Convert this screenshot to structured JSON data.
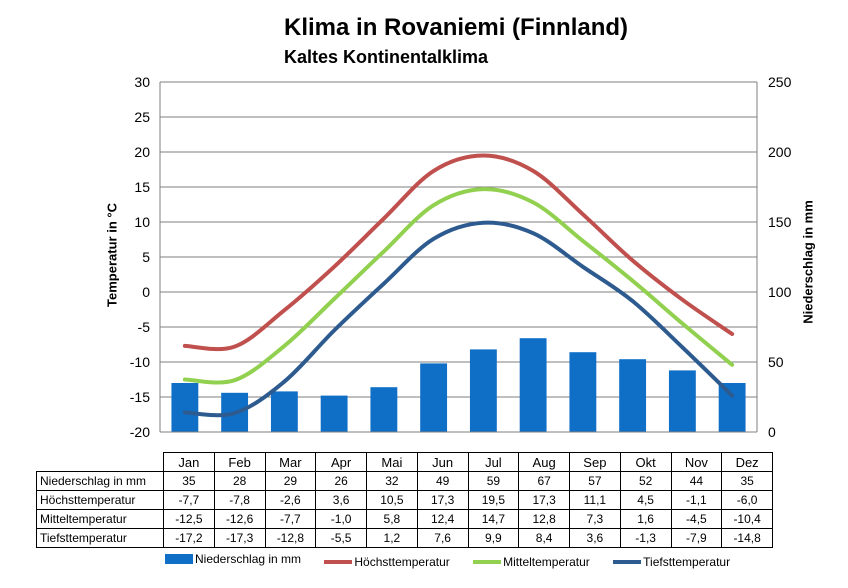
{
  "chart_data": {
    "type": "bar",
    "title": "Klima in Rovaniemi (Finnland)",
    "subtitle": "Kaltes Kontinentalklima",
    "ylabel_left": "Temperatur in °C",
    "ylabel_right": "Niederschlag in mm",
    "ylim_left": [
      -20,
      30
    ],
    "ylim_right": [
      0,
      250
    ],
    "yticks_left": [
      "30",
      "25",
      "20",
      "15",
      "10",
      "5",
      "0",
      "-5",
      "-10",
      "-15",
      "-20"
    ],
    "yticks_right": [
      "250",
      "200",
      "150",
      "100",
      "50",
      "0"
    ],
    "categories": [
      "Jan",
      "Feb",
      "Mar",
      "Apr",
      "Mai",
      "Jun",
      "Jul",
      "Aug",
      "Sep",
      "Okt",
      "Nov",
      "Dez"
    ],
    "grid": true,
    "legend_position": "bottom",
    "bar_series": {
      "name": "Niederschlag in mm",
      "color": "#0f6fc6",
      "axis": "right",
      "values": [
        35,
        28,
        29,
        26,
        32,
        49,
        59,
        67,
        57,
        52,
        44,
        35
      ]
    },
    "line_series": [
      {
        "name": "Höchsttemperatur",
        "color": "#c0504d",
        "values": [
          -7.7,
          -7.8,
          -2.6,
          3.6,
          10.5,
          17.3,
          19.5,
          17.3,
          11.1,
          4.5,
          -1.1,
          -6.0
        ]
      },
      {
        "name": "Mitteltemperatur",
        "color": "#92d050",
        "values": [
          -12.5,
          -12.6,
          -7.7,
          -1.0,
          5.8,
          12.4,
          14.7,
          12.8,
          7.3,
          1.6,
          -4.5,
          -10.4
        ]
      },
      {
        "name": "Tiefsttemperatur",
        "color": "#2e5b8f",
        "values": [
          -17.2,
          -17.3,
          -12.8,
          -5.5,
          1.2,
          7.6,
          9.9,
          8.4,
          3.6,
          -1.3,
          -7.9,
          -14.8
        ]
      }
    ],
    "table": {
      "rows": [
        {
          "label": "Niederschlag in mm",
          "values": [
            "35",
            "28",
            "29",
            "26",
            "32",
            "49",
            "59",
            "67",
            "57",
            "52",
            "44",
            "35"
          ]
        },
        {
          "label": "Höchsttemperatur",
          "values": [
            "-7,7",
            "-7,8",
            "-2,6",
            "3,6",
            "10,5",
            "17,3",
            "19,5",
            "17,3",
            "11,1",
            "4,5",
            "-1,1",
            "-6,0"
          ]
        },
        {
          "label": "Mitteltemperatur",
          "values": [
            "-12,5",
            "-12,6",
            "-7,7",
            "-1,0",
            "5,8",
            "12,4",
            "14,7",
            "12,8",
            "7,3",
            "1,6",
            "-4,5",
            "-10,4"
          ]
        },
        {
          "label": "Tiefsttemperatur",
          "values": [
            "-17,2",
            "-17,3",
            "-12,8",
            "-5,5",
            "1,2",
            "7,6",
            "9,9",
            "8,4",
            "3,6",
            "-1,3",
            "-7,9",
            "-14,8"
          ]
        }
      ]
    }
  }
}
